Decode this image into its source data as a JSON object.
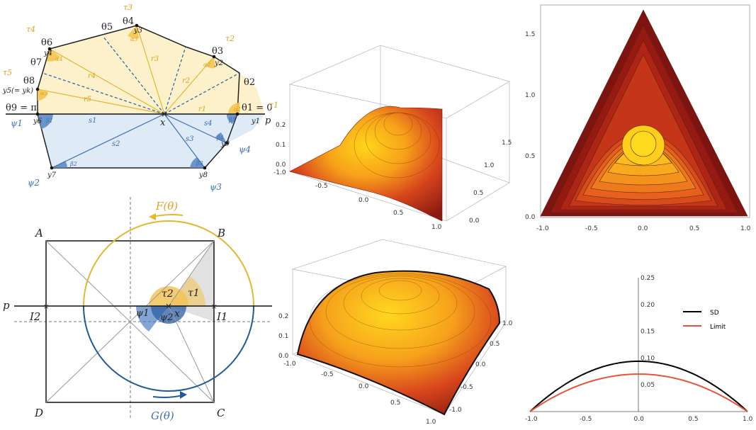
{
  "colors": {
    "upper_fill": "#fdf1cc",
    "lower_fill": "#dfeaf7",
    "alpha_fill": "#f5c451",
    "beta_fill": "#5b86c2",
    "orange_text": "#e0a21c",
    "blue_text": "#3d6fb5",
    "circle_top": "#e2b830",
    "circle_bottom": "#2060a0",
    "sd_curve": "#000000",
    "limit_curve": "#e8543a"
  },
  "polygon": {
    "theta": [
      "θ1 = 0",
      "θ2",
      "θ3",
      "θ4",
      "θ5",
      "θ6",
      "θ7",
      "θ8",
      "θ9 = π"
    ],
    "tau": [
      "τ1",
      "τ2",
      "τ3",
      "τ4",
      "τ5"
    ],
    "psi": [
      "ψ1",
      "ψ2",
      "ψ3",
      "ψ4"
    ],
    "y": [
      "y1",
      "y2",
      "y3",
      "y4",
      "y5(= yk)",
      "y6",
      "y7",
      "y8",
      "y9"
    ],
    "r": [
      "r1",
      "r2",
      "r3",
      "r4",
      "r5"
    ],
    "s": [
      "s1",
      "s2",
      "s3",
      "s4"
    ],
    "alpha": [
      "α1",
      "α2",
      "α3",
      "α4",
      "α5"
    ],
    "beta": [
      "β1",
      "β2",
      "β3",
      "β4",
      "β1"
    ],
    "x_label": "x",
    "p_label": "p"
  },
  "square": {
    "corners": [
      "A",
      "B",
      "C",
      "D"
    ],
    "I1": "I1",
    "I2": "I2",
    "x_label": "x",
    "p_label": "p",
    "F_label": "F(θ)",
    "G_label": "G(θ)",
    "tau": [
      "τ1",
      "τ2"
    ],
    "psi": [
      "ψ1",
      "ψ2"
    ]
  },
  "surface_triangle": {
    "z_ticks": [
      "0.2",
      "0.1",
      "0.0"
    ],
    "x_ticks": [
      "-1.0",
      "-0.5",
      "0.0",
      "0.5",
      "1.0"
    ],
    "y_ticks": [
      "0.0",
      "0.5",
      "1.0",
      "1.5"
    ]
  },
  "contour_triangle": {
    "x_ticks": [
      "-1.0",
      "-0.5",
      "0.0",
      "0.5",
      "1.0"
    ],
    "y_ticks": [
      "0.0",
      "0.5",
      "1.0",
      "1.5"
    ]
  },
  "surface_square": {
    "z_ticks": [
      "0.2",
      "0.1",
      "0.0"
    ],
    "x_ticks": [
      "-1.0",
      "-0.5",
      "0.0",
      "0.5",
      "1.0"
    ],
    "y_ticks": [
      "1.0",
      "0.5",
      "0.0",
      "-0.5",
      "-1.0"
    ]
  },
  "chart_data": {
    "type": "line",
    "x": [
      -1.0,
      -0.75,
      -0.5,
      -0.25,
      0.0,
      0.25,
      0.5,
      0.75,
      1.0
    ],
    "series": [
      {
        "name": "SD",
        "color": "#000000",
        "values": [
          0.0,
          0.041,
          0.07,
          0.088,
          0.094,
          0.088,
          0.07,
          0.041,
          0.0
        ]
      },
      {
        "name": "Limit",
        "color": "#e8543a",
        "values": [
          0.0,
          0.031,
          0.053,
          0.066,
          0.07,
          0.066,
          0.053,
          0.031,
          0.0
        ]
      }
    ],
    "xlim": [
      -1.0,
      1.0
    ],
    "ylim": [
      0.0,
      0.25
    ],
    "x_ticks": [
      "-1.0",
      "-0.5",
      "0.0",
      "0.5",
      "1.0"
    ],
    "y_ticks": [
      "0.05",
      "0.10",
      "0.15",
      "0.20",
      "0.25"
    ],
    "legend_position": "right"
  }
}
